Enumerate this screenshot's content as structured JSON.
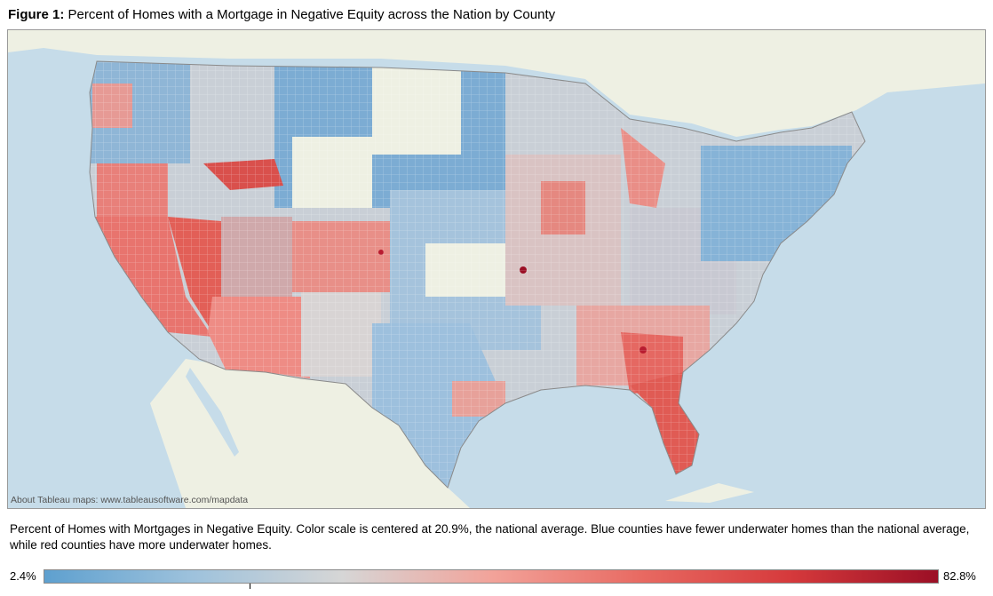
{
  "figure": {
    "label": "Figure 1:",
    "title": "Percent of Homes with a Mortgage in Negative Equity across the Nation by County"
  },
  "map": {
    "credit": "About Tableau maps: www.tableausoftware.com/mapdata",
    "colors": {
      "water": "#c6dce9",
      "land": "#eef0e3",
      "blue": "#5fa2d0",
      "neutral": "#d7d7d7",
      "red": "#e85a55",
      "dark_red": "#9c0e24"
    },
    "regions": [
      {
        "name": "Pacific Northwest",
        "level": 0.18
      },
      {
        "name": "California",
        "level": 0.65
      },
      {
        "name": "Nevada",
        "level": 0.72
      },
      {
        "name": "Arizona",
        "level": 0.55
      },
      {
        "name": "Idaho",
        "level": 0.5
      },
      {
        "name": "Northern Plains",
        "level": 0.05
      },
      {
        "name": "Texas",
        "level": 0.12
      },
      {
        "name": "Midwest",
        "level": 0.35
      },
      {
        "name": "Michigan",
        "level": 0.5
      },
      {
        "name": "Georgia",
        "level": 0.62
      },
      {
        "name": "Florida",
        "level": 0.7
      },
      {
        "name": "Northeast",
        "level": 0.2
      }
    ]
  },
  "caption": "Percent of Homes with Mortgages in Negative Equity. Color scale is centered at 20.9%, the national average. Blue counties have fewer underwater homes than the national average, while red counties have more underwater homes.",
  "legend": {
    "min_label": "2.4%",
    "max_label": "82.8%",
    "min_value": 2.4,
    "max_value": 82.8,
    "center_value": 20.9,
    "stops": [
      "#5ea0cf",
      "#9ec2dc",
      "#d6d6d6",
      "#f2a39a",
      "#e86a62",
      "#d63a3c",
      "#9b0f25"
    ]
  }
}
